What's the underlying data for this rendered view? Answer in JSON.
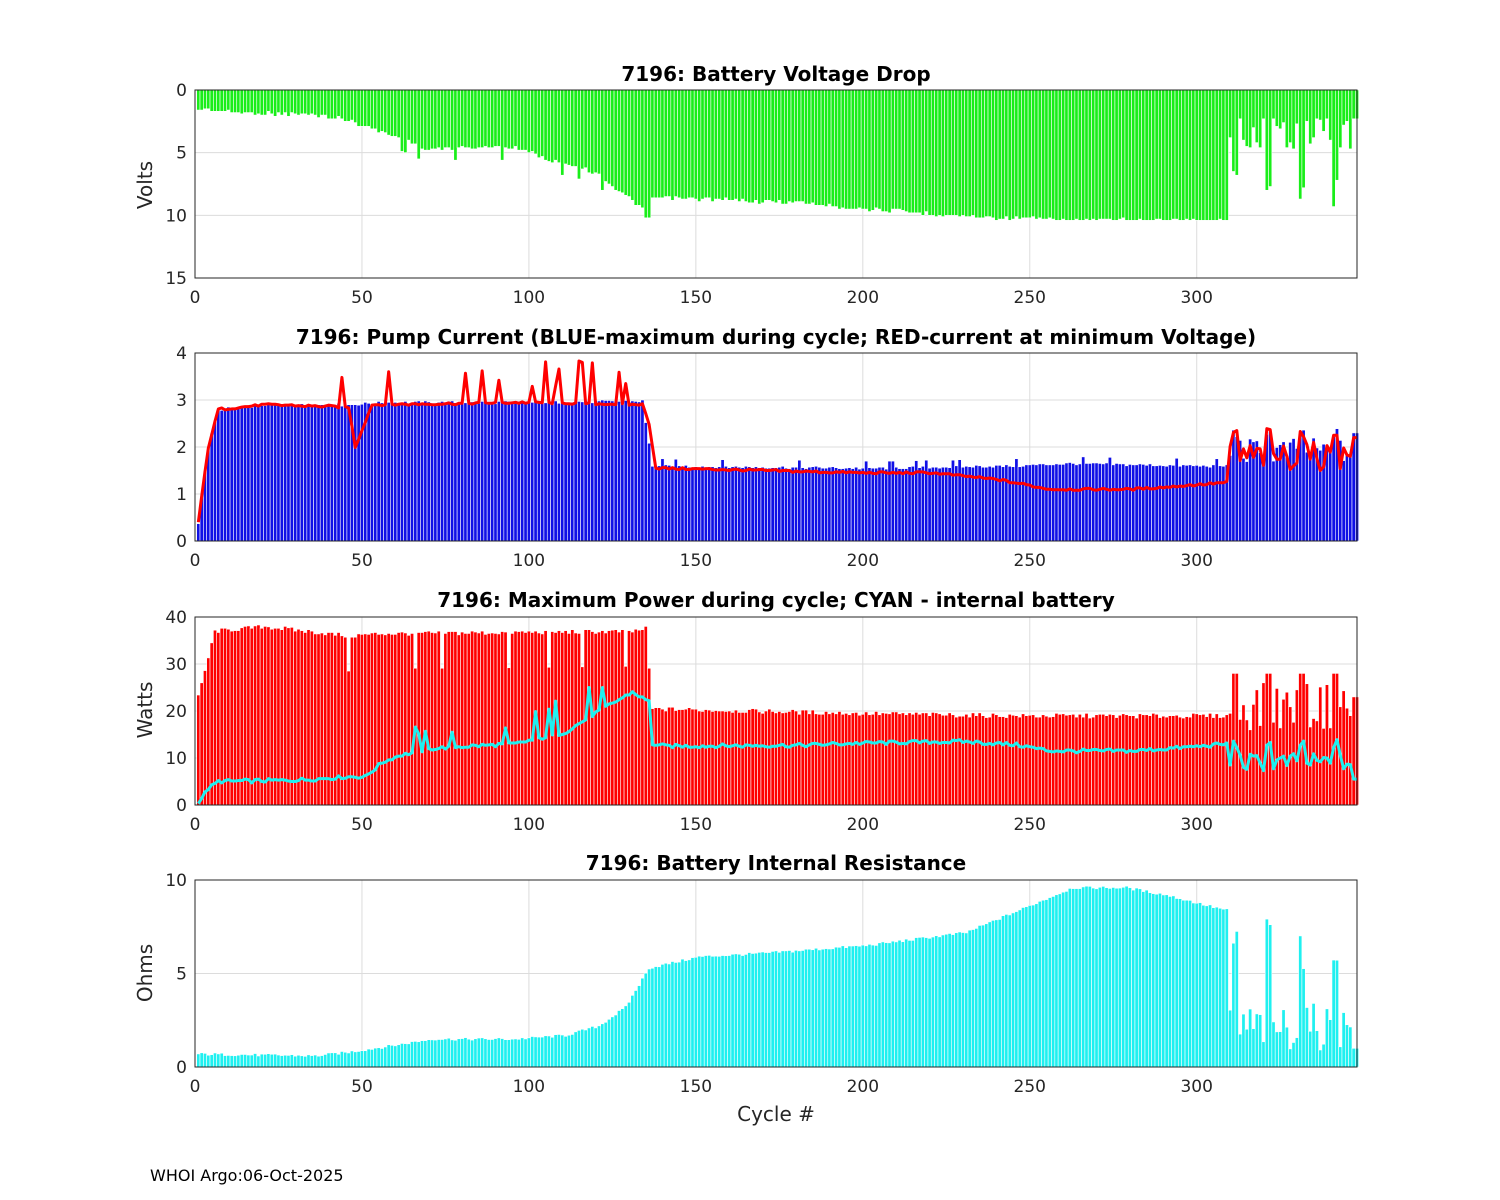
{
  "footer": "WHOI Argo:06-Oct-2025",
  "colors": {
    "green": "#19ee19",
    "blue": "#1010e6",
    "red": "#ff0000",
    "cyan": "#1ff0f0",
    "edge": "#ffffff"
  },
  "chart_data": [
    {
      "type": "bar",
      "title": "7196: Battery Voltage Drop",
      "ylabel": "Volts",
      "xlabel": "",
      "xlim": [
        0,
        348
      ],
      "ylim": [
        0,
        15
      ],
      "y_reversed": true,
      "xticks": [
        "0",
        "50",
        "100",
        "150",
        "200",
        "250",
        "300"
      ],
      "yticks": [
        "0",
        "5",
        "10",
        "15"
      ],
      "series": [
        {
          "name": "voltage drop",
          "color": "green",
          "values": []
        }
      ]
    },
    {
      "type": "bar",
      "title": "7196: Pump Current (BLUE-maximum during cycle; RED-current at minimum Voltage)",
      "ylabel": "",
      "xlabel": "",
      "xlim": [
        0,
        348
      ],
      "ylim": [
        0,
        4
      ],
      "xticks": [
        "0",
        "50",
        "100",
        "150",
        "200",
        "250",
        "300"
      ],
      "yticks": [
        "0",
        "1",
        "2",
        "3",
        "4"
      ],
      "series": [
        {
          "name": "maximum during cycle",
          "kind": "bar",
          "color": "blue",
          "values": []
        },
        {
          "name": "current at minimum voltage",
          "kind": "line",
          "color": "red",
          "values": []
        }
      ]
    },
    {
      "type": "bar",
      "title": "7196: Maximum Power during cycle; CYAN - internal battery",
      "ylabel": "Watts",
      "xlabel": "",
      "xlim": [
        0,
        348
      ],
      "ylim": [
        0,
        40
      ],
      "xticks": [
        "0",
        "50",
        "100",
        "150",
        "200",
        "250",
        "300"
      ],
      "yticks": [
        "0",
        "10",
        "20",
        "30",
        "40"
      ],
      "series": [
        {
          "name": "maximum power",
          "kind": "bar",
          "color": "red",
          "values": []
        },
        {
          "name": "internal battery",
          "kind": "line",
          "color": "cyan",
          "values": []
        }
      ]
    },
    {
      "type": "bar",
      "title": "7196: Battery Internal Resistance",
      "ylabel": "Ohms",
      "xlabel": "Cycle #",
      "xlim": [
        0,
        348
      ],
      "ylim": [
        0,
        10
      ],
      "xticks": [
        "0",
        "50",
        "100",
        "150",
        "200",
        "250",
        "300"
      ],
      "yticks": [
        "0",
        "5",
        "10"
      ],
      "series": [
        {
          "name": "internal resistance",
          "color": "cyan",
          "values": []
        }
      ]
    }
  ]
}
